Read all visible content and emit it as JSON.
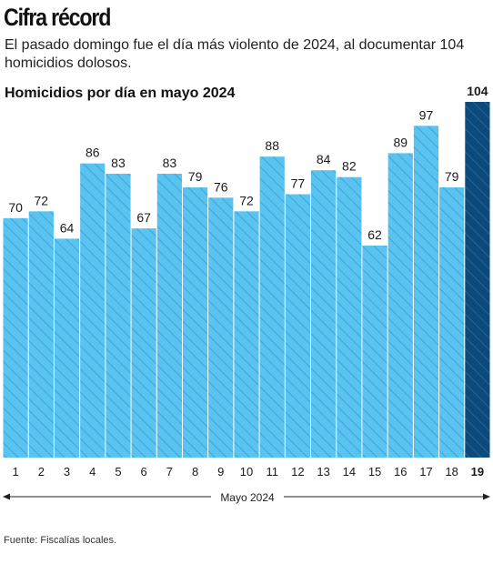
{
  "headline": "Cifra récord",
  "dek": "El pasado domingo fue el día más violento de 2024, al documentar 104 homicidios dolosos.",
  "source": "Fuente: Fiscalías locales.",
  "colors": {
    "bar": "#5bc3ef",
    "bar_hatch": "#3aa6da",
    "highlight": "#0d4a7a",
    "highlight_hatch": "#1c66a0",
    "text": "#1a1a1a"
  },
  "chart_data": {
    "type": "bar",
    "title": "Homicidios por día en mayo 2024",
    "xlabel": "Mayo 2024",
    "ylabel": "",
    "categories": [
      "1",
      "2",
      "3",
      "4",
      "5",
      "6",
      "7",
      "8",
      "9",
      "10",
      "11",
      "12",
      "13",
      "14",
      "15",
      "16",
      "17",
      "18",
      "19"
    ],
    "values": [
      70,
      72,
      64,
      86,
      83,
      67,
      83,
      79,
      76,
      72,
      88,
      77,
      84,
      82,
      62,
      89,
      97,
      79,
      104
    ],
    "ylim": [
      0,
      104
    ],
    "highlight_category": "19",
    "grid": false,
    "data_labels": true,
    "legend": "none"
  }
}
